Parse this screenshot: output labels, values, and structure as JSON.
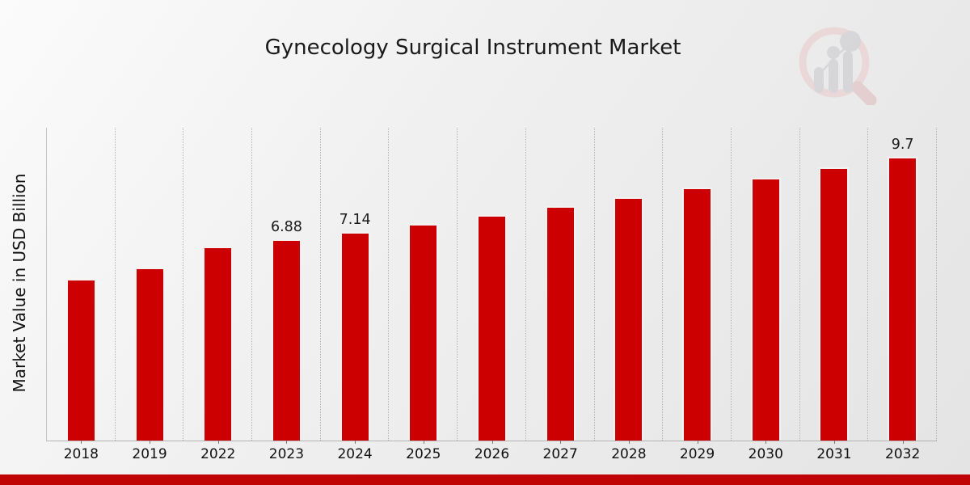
{
  "title": "Gynecology Surgical Instrument Market",
  "y_axis_label": "Market Value in USD Billion",
  "logo_icon": "magnifier-bar-chart-logo",
  "colors": {
    "bar": "#cc0000",
    "footer_accent": "#c00404",
    "grid": "#b5b5b5",
    "axis": "#b4b4b4",
    "text": "#1a1a1a",
    "logo_ring": "#eacaca",
    "logo_bars": "#c7c7cc",
    "logo_handle": "#dfb9b9"
  },
  "chart_data": {
    "type": "bar",
    "title": "Gynecology Surgical Instrument Market",
    "xlabel": "",
    "ylabel": "Market Value in USD Billion",
    "categories": [
      "2018",
      "2019",
      "2022",
      "2023",
      "2024",
      "2025",
      "2026",
      "2027",
      "2028",
      "2029",
      "2030",
      "2031",
      "2032"
    ],
    "values": [
      5.52,
      5.92,
      6.64,
      6.88,
      7.14,
      7.42,
      7.71,
      8.01,
      8.32,
      8.65,
      8.99,
      9.34,
      9.7
    ],
    "bar_labels": [
      "",
      "",
      "",
      "6.88",
      "7.14",
      "",
      "",
      "",
      "",
      "",
      "",
      "",
      "9.7"
    ],
    "ylim": [
      0,
      10.7
    ],
    "bar_color": "#cc0000",
    "grid": "vertical dotted lines at category boundaries",
    "legend": "none",
    "y_ticks_visible": false
  }
}
